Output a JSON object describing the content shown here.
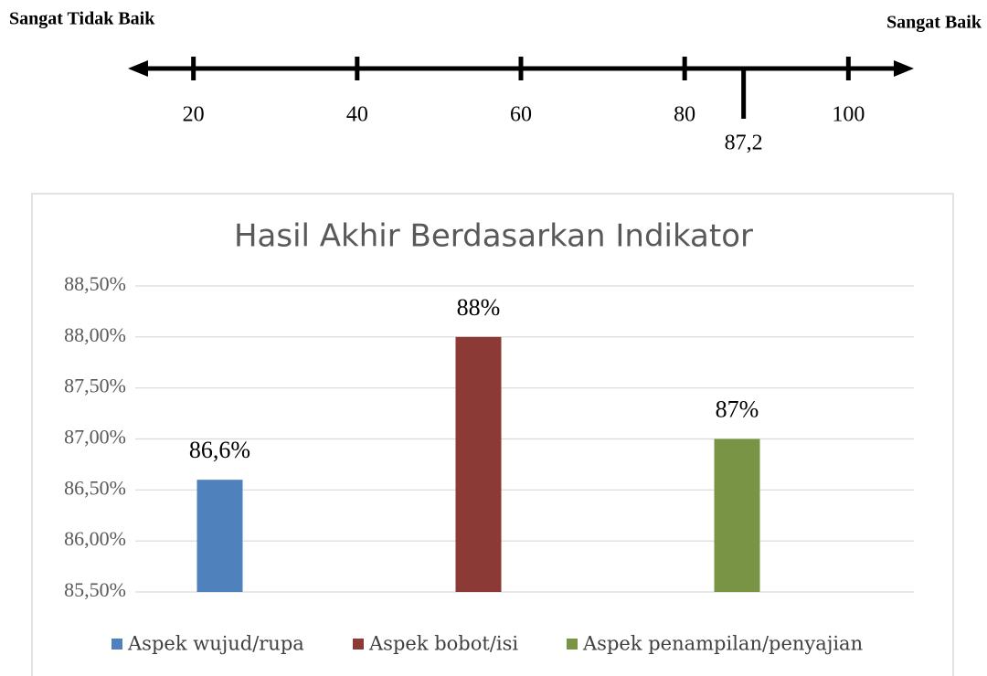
{
  "chart_data": [
    {
      "type": "scale",
      "left_label": "Sangat Tidak Baik",
      "right_label": "Sangat Baik",
      "xlim": [
        12,
        108
      ],
      "xticks": [
        20,
        40,
        60,
        80,
        100
      ],
      "marker": {
        "value": 87.2,
        "label": "87,2"
      },
      "color": "#000000"
    },
    {
      "type": "bar",
      "title": "Hasil Akhir Berdasarkan Indikator",
      "categories": [
        "Aspek wujud/rupa",
        "Aspek bobot/isi",
        "Aspek penampilan/penyajian"
      ],
      "values": [
        86.6,
        88,
        87
      ],
      "value_labels": [
        "86,6%",
        "88%",
        "87%"
      ],
      "colors": [
        "#4f81bd",
        "#8b3a36",
        "#7a9445"
      ],
      "ylim": [
        85.5,
        88.5
      ],
      "yticks": [
        {
          "value": 85.5,
          "label": "85,50%"
        },
        {
          "value": 86,
          "label": "86,00%"
        },
        {
          "value": 86.5,
          "label": "86,50%"
        },
        {
          "value": 87,
          "label": "87,00%"
        },
        {
          "value": 87.5,
          "label": "87,50%"
        },
        {
          "value": 88,
          "label": "88,00%"
        },
        {
          "value": 88.5,
          "label": "88,50%"
        }
      ],
      "grid": true,
      "legend": "bottom"
    }
  ]
}
